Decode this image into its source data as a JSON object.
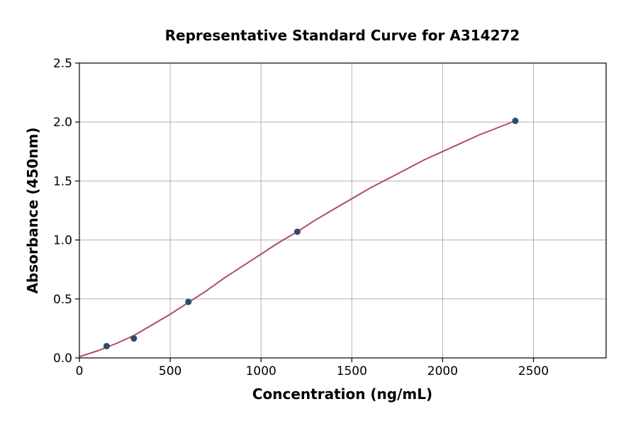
{
  "chart_data": {
    "type": "scatter",
    "title": "Representative Standard Curve for A314272",
    "xlabel": "Concentration (ng/mL)",
    "ylabel": "Absorbance (450nm)",
    "xlim": [
      0,
      2900
    ],
    "ylim": [
      0,
      2.5
    ],
    "x_ticks": [
      0,
      500,
      1000,
      1500,
      2000,
      2500
    ],
    "y_ticks": [
      0.0,
      0.5,
      1.0,
      1.5,
      2.0,
      2.5
    ],
    "x_tick_labels": [
      "0",
      "500",
      "1000",
      "1500",
      "2000",
      "2500"
    ],
    "y_tick_labels": [
      "0.0",
      "0.5",
      "1.0",
      "1.5",
      "2.0",
      "2.5"
    ],
    "grid": true,
    "series": [
      {
        "kind": "points",
        "color": "#2e4a6b",
        "x": [
          150,
          300,
          600,
          1200,
          2400
        ],
        "y": [
          0.1,
          0.165,
          0.475,
          1.07,
          2.01
        ]
      },
      {
        "kind": "fit-curve",
        "color": "#b04a6a",
        "x": [
          0,
          100,
          200,
          300,
          400,
          500,
          600,
          700,
          800,
          900,
          1000,
          1100,
          1200,
          1300,
          1400,
          1500,
          1600,
          1700,
          1800,
          1900,
          2000,
          2100,
          2200,
          2300,
          2400
        ],
        "y": [
          0.01,
          0.06,
          0.12,
          0.19,
          0.28,
          0.37,
          0.47,
          0.57,
          0.68,
          0.78,
          0.88,
          0.98,
          1.07,
          1.17,
          1.26,
          1.35,
          1.44,
          1.52,
          1.6,
          1.68,
          1.75,
          1.82,
          1.89,
          1.95,
          2.01
        ]
      }
    ]
  }
}
